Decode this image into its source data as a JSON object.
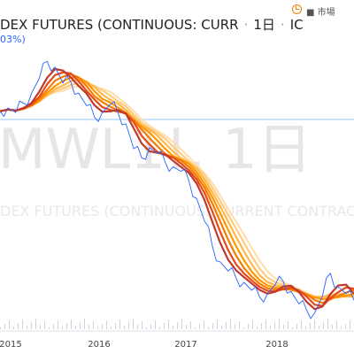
{
  "header": {
    "symbol_title": "DEX FUTURES (CONTINUOUS: CURR",
    "interval": "1日",
    "exchange": "IC",
    "change_text": "03%)",
    "market_status": "市場"
  },
  "watermark": {
    "symbol": "MWL1!, 1日",
    "description": "DEX FUTURES (CONTINUOUS: CURRENT CONTRACT IN"
  },
  "colors": {
    "line": "#2962ff",
    "ma_dark": "#c0392b",
    "ma_light": "#ffcc80",
    "grid": "#e0e3eb",
    "price_line": "#90caf9"
  },
  "chart_data": {
    "type": "line",
    "x_ticks": [
      "2015",
      "2016",
      "2017",
      "2018"
    ],
    "series": [
      {
        "values": [
          263,
          266,
          262,
          270,
          279,
          292,
          307,
          302,
          288,
          289,
          279,
          268,
          258,
          262,
          269,
          262,
          252,
          230,
          222,
          231,
          226,
          218,
          214,
          210,
          202,
          186,
          166,
          144,
          130,
          122,
          116,
          112,
          105,
          99,
          102,
          110,
          113,
          104,
          93,
          87,
          85,
          100,
          120,
          108,
          102,
          96
        ]
      }
    ]
  }
}
